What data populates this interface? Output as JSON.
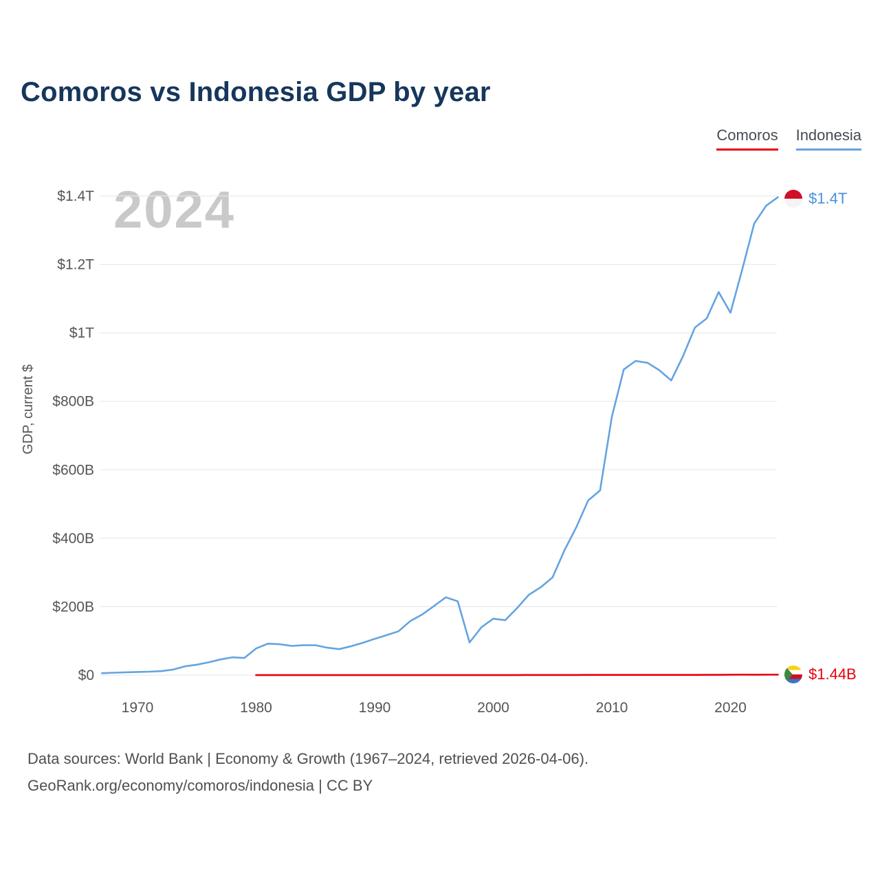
{
  "title": "Comoros vs Indonesia GDP by year",
  "watermark": "2024",
  "legend": {
    "comoros": {
      "label": "Comoros",
      "color": "#e8000d"
    },
    "indonesia": {
      "label": "Indonesia",
      "color": "#64a3e1"
    }
  },
  "end_labels": {
    "indonesia": {
      "label": "$1.4T",
      "color": "#4a90d9",
      "flag": "indonesia-flag"
    },
    "comoros": {
      "label": "$1.44B",
      "color": "#e8000d",
      "flag": "comoros-flag"
    }
  },
  "footer": {
    "line1": "Data sources: World Bank | Economy & Growth (1967–2024, retrieved 2026-04-06).",
    "line2": "GeoRank.org/economy/comoros/indonesia | CC BY"
  },
  "chart_data": {
    "type": "line",
    "title": "Comoros vs Indonesia GDP by year",
    "xlabel": "",
    "ylabel": "GDP, current $",
    "unit": "billions of current US$",
    "grid": "horizontal",
    "legend_position": "top-right",
    "x_range": [
      1966.5,
      2025
    ],
    "y_range_billions": [
      0,
      1400
    ],
    "x_ticks": [
      1970,
      1980,
      1990,
      2000,
      2010,
      2020
    ],
    "y_ticks": [
      {
        "value": 0,
        "label": "$0"
      },
      {
        "value": 200,
        "label": "$200B"
      },
      {
        "value": 400,
        "label": "$400B"
      },
      {
        "value": 600,
        "label": "$600B"
      },
      {
        "value": 800,
        "label": "$800B"
      },
      {
        "value": 1000,
        "label": "$1T"
      },
      {
        "value": 1200,
        "label": "$1.2T"
      },
      {
        "value": 1400,
        "label": "$1.4T"
      }
    ],
    "series": [
      {
        "name": "Comoros",
        "color": "#e8000d",
        "end_label": "$1.44B",
        "points": [
          [
            1980,
            0.12
          ],
          [
            1981,
            0.14
          ],
          [
            1982,
            0.12
          ],
          [
            1983,
            0.13
          ],
          [
            1984,
            0.13
          ],
          [
            1985,
            0.11
          ],
          [
            1986,
            0.15
          ],
          [
            1987,
            0.16
          ],
          [
            1988,
            0.18
          ],
          [
            1989,
            0.18
          ],
          [
            1990,
            0.25
          ],
          [
            1991,
            0.27
          ],
          [
            1992,
            0.29
          ],
          [
            1993,
            0.3
          ],
          [
            1994,
            0.22
          ],
          [
            1995,
            0.23
          ],
          [
            1996,
            0.22
          ],
          [
            1997,
            0.2
          ],
          [
            1998,
            0.21
          ],
          [
            1999,
            0.21
          ],
          [
            2000,
            0.22
          ],
          [
            2001,
            0.23
          ],
          [
            2002,
            0.26
          ],
          [
            2003,
            0.32
          ],
          [
            2004,
            0.37
          ],
          [
            2005,
            0.39
          ],
          [
            2006,
            0.41
          ],
          [
            2007,
            0.46
          ],
          [
            2008,
            0.53
          ],
          [
            2009,
            0.53
          ],
          [
            2010,
            0.53
          ],
          [
            2011,
            0.61
          ],
          [
            2012,
            0.6
          ],
          [
            2013,
            0.65
          ],
          [
            2014,
            0.67
          ],
          [
            2015,
            0.59
          ],
          [
            2016,
            0.61
          ],
          [
            2017,
            0.66
          ],
          [
            2018,
            0.71
          ],
          [
            2019,
            0.72
          ],
          [
            2020,
            1.22
          ],
          [
            2021,
            1.32
          ],
          [
            2022,
            1.25
          ],
          [
            2023,
            1.35
          ],
          [
            2024,
            1.44
          ]
        ]
      },
      {
        "name": "Indonesia",
        "color": "#64a3e1",
        "end_label": "$1.4T",
        "points": [
          [
            1967,
            5.7
          ],
          [
            1968,
            7.1
          ],
          [
            1969,
            8.3
          ],
          [
            1970,
            9.2
          ],
          [
            1971,
            10.0
          ],
          [
            1972,
            11.6
          ],
          [
            1973,
            16.3
          ],
          [
            1974,
            25.8
          ],
          [
            1975,
            30.5
          ],
          [
            1976,
            37.3
          ],
          [
            1977,
            45.8
          ],
          [
            1978,
            52.0
          ],
          [
            1979,
            50.0
          ],
          [
            1980,
            78.0
          ],
          [
            1981,
            92.0
          ],
          [
            1982,
            90.2
          ],
          [
            1983,
            85.4
          ],
          [
            1984,
            87.6
          ],
          [
            1985,
            87.3
          ],
          [
            1986,
            80.1
          ],
          [
            1987,
            75.9
          ],
          [
            1988,
            84.3
          ],
          [
            1989,
            94.5
          ],
          [
            1990,
            106.1
          ],
          [
            1991,
            116.6
          ],
          [
            1992,
            128.0
          ],
          [
            1993,
            158.0
          ],
          [
            1994,
            176.9
          ],
          [
            1995,
            202.1
          ],
          [
            1996,
            227.4
          ],
          [
            1997,
            215.7
          ],
          [
            1998,
            95.4
          ],
          [
            1999,
            140.0
          ],
          [
            2000,
            165.0
          ],
          [
            2001,
            160.4
          ],
          [
            2002,
            195.7
          ],
          [
            2003,
            234.8
          ],
          [
            2004,
            256.8
          ],
          [
            2005,
            285.9
          ],
          [
            2006,
            364.6
          ],
          [
            2007,
            432.2
          ],
          [
            2008,
            510.2
          ],
          [
            2009,
            539.6
          ],
          [
            2010,
            755.1
          ],
          [
            2011,
            893.0
          ],
          [
            2012,
            917.9
          ],
          [
            2013,
            912.5
          ],
          [
            2014,
            890.8
          ],
          [
            2015,
            860.9
          ],
          [
            2016,
            931.9
          ],
          [
            2017,
            1015.6
          ],
          [
            2018,
            1042.3
          ],
          [
            2019,
            1119.1
          ],
          [
            2020,
            1058.7
          ],
          [
            2021,
            1186.5
          ],
          [
            2022,
            1319.1
          ],
          [
            2023,
            1371.2
          ],
          [
            2024,
            1396.3
          ]
        ]
      }
    ]
  }
}
